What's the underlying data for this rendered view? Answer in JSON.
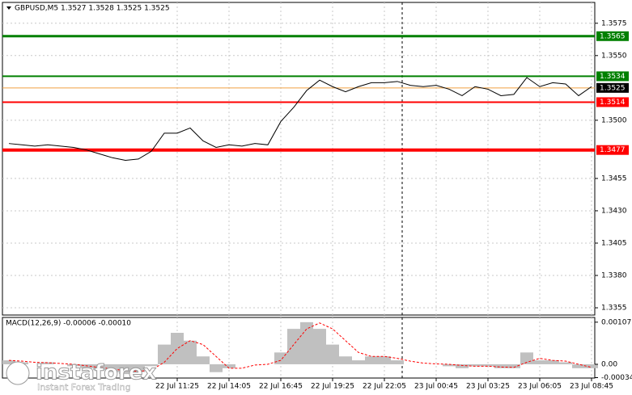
{
  "chart_data": {
    "type": "line",
    "title": "GBPUSD,M5  1.3527 1.3528 1.3525 1.3525",
    "categories": [
      null,
      null,
      null,
      null,
      null,
      null,
      null,
      null,
      null,
      null,
      null,
      null,
      null,
      "22 Jul 11:25",
      null,
      null,
      null,
      "22 Jul 14:05",
      null,
      null,
      null,
      "22 Jul 16:45",
      null,
      null,
      null,
      "22 Jul 19:25",
      null,
      null,
      null,
      "22 Jul 22:05",
      null,
      null,
      null,
      "23 Jul 00:45",
      null,
      null,
      null,
      "23 Jul 03:25",
      null,
      null,
      null,
      "23 Jul 06:05",
      null,
      null,
      null,
      "23 Jul 08:45"
    ],
    "series": [
      {
        "name": "GBPUSD",
        "color": "#000000",
        "values": [
          1.3482,
          1.3481,
          1.348,
          1.3481,
          1.348,
          1.3479,
          1.3477,
          1.3474,
          1.3471,
          1.3469,
          1.347,
          1.3476,
          1.349,
          1.349,
          1.3494,
          1.3484,
          1.3479,
          1.3481,
          1.348,
          1.3482,
          1.3481,
          1.3499,
          1.351,
          1.3523,
          1.3531,
          1.3526,
          1.3522,
          1.3526,
          1.3529,
          1.3529,
          1.353,
          1.3527,
          1.3526,
          1.3527,
          1.3524,
          1.3519,
          1.3526,
          1.3524,
          1.3519,
          1.352,
          1.3533,
          1.3526,
          1.3529,
          1.3528,
          1.3519,
          1.3526
        ]
      }
    ],
    "ylim": [
      1.33494,
      1.35911
    ],
    "yticks": [
      1.3575,
      {
        "value": 1.355,
        "label": "1.3550"
      },
      {
        "value": 1.35,
        "label": "1.3500"
      },
      1.3455,
      {
        "value": 1.343,
        "label": "1.3430"
      },
      1.3405,
      {
        "value": 1.338,
        "label": "1.3380"
      },
      1.3355
    ],
    "levels": [
      {
        "value": 1.3565,
        "color": "#008000"
      },
      {
        "value": 1.3534,
        "color": "#008000"
      },
      {
        "value": 1.3514,
        "color": "#ff0000"
      },
      {
        "value": 1.3477,
        "color": "#ff0000"
      }
    ],
    "current_price": {
      "value": 1.3525,
      "color": "#f0a040"
    },
    "grid": true,
    "macd": {
      "title": "MACD(12,26,9) -0.00006 -0.00010",
      "histogram": [
        0.0001,
        5e-05,
        0,
        5e-05,
        0,
        -5e-05,
        -0.0001,
        -0.00015,
        -0.0002,
        -0.00025,
        -0.0002,
        -5e-05,
        0.0005,
        0.0008,
        0.0006,
        0.0002,
        -0.0002,
        -0.0001,
        0,
        0,
        0,
        0.0003,
        0.0009,
        0.00107,
        0.0009,
        0.0005,
        0.0002,
        0.0001,
        0.0002,
        0.0002,
        0.0001,
        0,
        0,
        0,
        -5e-05,
        -0.0001,
        -5e-05,
        -5e-05,
        -0.0001,
        -0.0001,
        0.0003,
        0.0001,
        0.0001,
        5e-05,
        -0.0001,
        -0.0001
      ],
      "signal": [
        0.0001,
        8e-05,
        5e-05,
        4e-05,
        2e-05,
        0,
        -4e-05,
        -8e-05,
        -0.00012,
        -0.00016,
        -0.00018,
        -0.00015,
        5e-05,
        0.0004,
        0.0006,
        0.0005,
        0.0002,
        -0.0001,
        -0.0001,
        -2e-05,
        0,
        0.0001,
        0.0005,
        0.0009,
        0.00105,
        0.0009,
        0.0006,
        0.0003,
        0.0002,
        0.0002,
        0.00015,
        8e-05,
        3e-05,
        1e-05,
        0,
        -3e-05,
        -5e-05,
        -5e-05,
        -7e-05,
        -8e-05,
        5e-05,
        0.00015,
        0.0001,
        8e-05,
        0,
        -8e-05
      ],
      "ylim": [
        -0.00035,
        0.00119
      ],
      "yticks": [
        0.00107,
        {
          "value": 0,
          "label": "0.00"
        },
        -0.00034
      ]
    },
    "watermark": {
      "brand": "instaforex",
      "slogan": "Instant Forex Trading"
    }
  }
}
